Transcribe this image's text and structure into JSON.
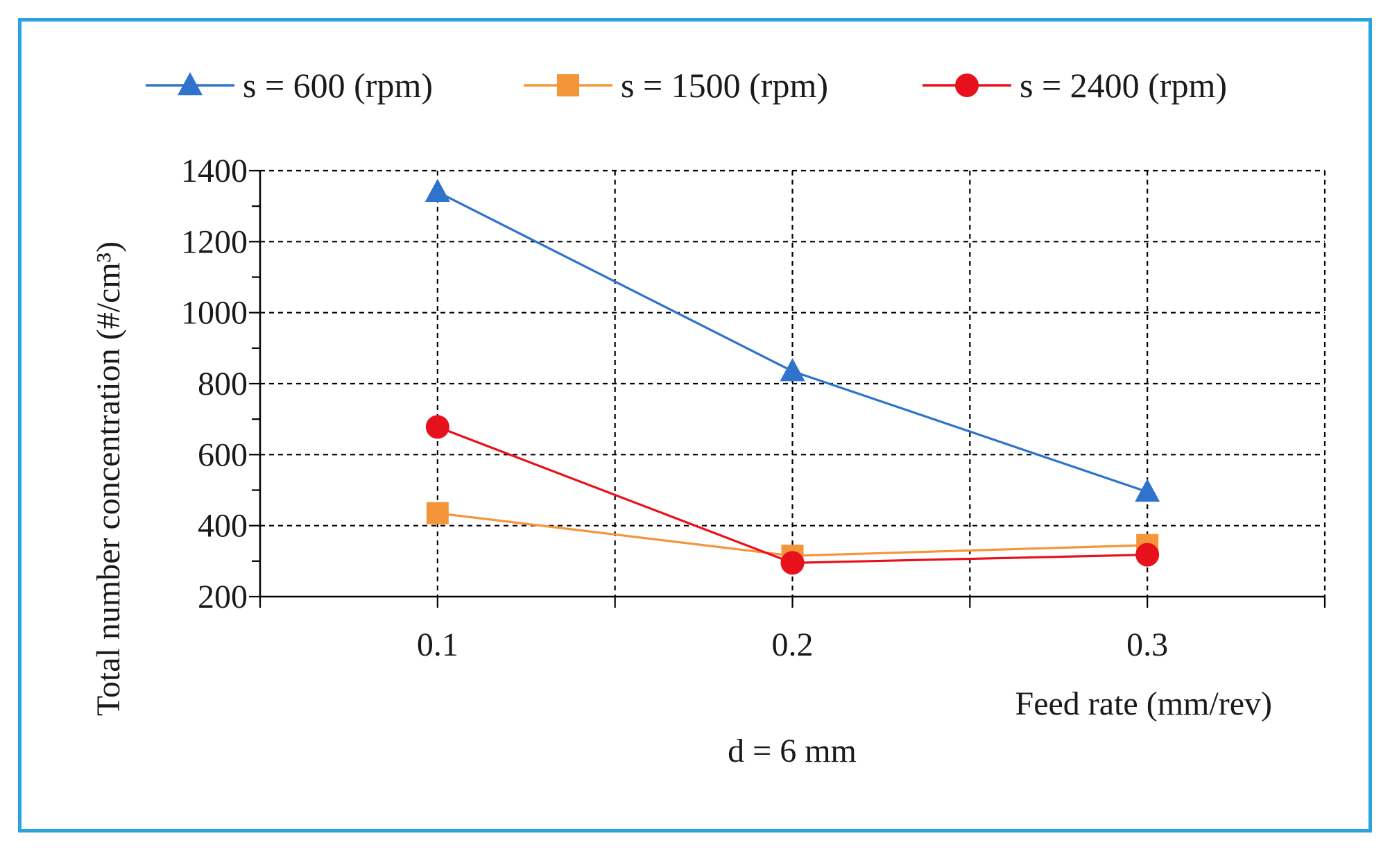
{
  "chart_data": {
    "type": "line",
    "title": "",
    "xlabel": "Feed rate (mm/rev)",
    "ylabel": "Total number concentration (#/cm³)",
    "caption": "d = 6 mm",
    "categories": [
      "0.1",
      "0.2",
      "0.3"
    ],
    "x": [
      0.1,
      0.2,
      0.3
    ],
    "xlim": [
      0.05,
      0.35
    ],
    "ylim": [
      200,
      1400
    ],
    "yticks": [
      200,
      400,
      600,
      800,
      1000,
      1200,
      1400
    ],
    "grid": true,
    "legend_position": "top",
    "series": [
      {
        "name": "s = 600 (rpm)",
        "values": [
          1340,
          835,
          495
        ],
        "color": "#2f73cc",
        "marker": "triangle"
      },
      {
        "name": "s = 1500 (rpm)",
        "values": [
          435,
          315,
          345
        ],
        "color": "#f5953a",
        "marker": "square"
      },
      {
        "name": "s = 2400 (rpm)",
        "values": [
          678,
          295,
          318
        ],
        "color": "#e8101c",
        "marker": "circle"
      }
    ]
  }
}
